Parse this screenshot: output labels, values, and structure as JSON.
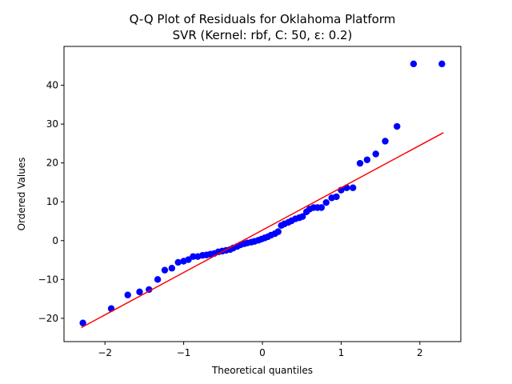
{
  "chart_data": {
    "type": "scatter",
    "title": "Q-Q Plot of Residuals for Oklahoma Platform",
    "subtitle": "SVR (Kernel: rbf, C: 50, ε: 0.2)",
    "xlabel": "Theoretical quantiles",
    "ylabel": "Ordered Values",
    "xlim": [
      -2.52,
      2.52
    ],
    "ylim": [
      -26,
      50
    ],
    "xticks": [
      -2,
      -1,
      0,
      1,
      2
    ],
    "xtick_labels": [
      "−2",
      "−1",
      "0",
      "1",
      "2"
    ],
    "yticks": [
      -20,
      -10,
      0,
      10,
      20,
      30,
      40
    ],
    "ytick_labels": [
      "−20",
      "−10",
      "0",
      "10",
      "20",
      "30",
      "40"
    ],
    "grid": false,
    "colors": {
      "points": "#0000ff",
      "fit_line": "#ff0000"
    },
    "series": [
      {
        "kind": "points",
        "x": [
          -2.28,
          -1.92,
          -1.71,
          -1.56,
          -1.44,
          -1.33,
          -1.24,
          -1.15,
          -1.07,
          -1.0,
          -0.94,
          -0.88,
          -0.82,
          -0.76,
          -0.71,
          -0.66,
          -0.61,
          -0.56,
          -0.51,
          -0.46,
          -0.41,
          -0.37,
          -0.32,
          -0.28,
          -0.23,
          -0.19,
          -0.14,
          -0.1,
          -0.05,
          -0.01,
          0.03,
          0.07,
          0.11,
          0.16,
          0.2,
          0.24,
          0.28,
          0.33,
          0.37,
          0.42,
          0.47,
          0.51,
          0.56,
          0.6,
          0.65,
          0.7,
          0.75,
          0.81,
          0.88,
          0.94,
          1.0,
          1.07,
          1.15,
          1.24,
          1.33,
          1.44,
          1.56,
          1.71,
          1.92,
          2.28
        ],
        "y": [
          -21.2,
          -17.5,
          -14.0,
          -13.2,
          -12.6,
          -10.0,
          -7.6,
          -7.1,
          -5.6,
          -5.3,
          -4.9,
          -4.1,
          -4.1,
          -3.8,
          -3.7,
          -3.5,
          -3.3,
          -2.9,
          -2.7,
          -2.5,
          -2.3,
          -1.9,
          -1.5,
          -1.1,
          -0.8,
          -0.6,
          -0.4,
          -0.2,
          0.1,
          0.4,
          0.7,
          1.0,
          1.4,
          1.8,
          2.3,
          3.9,
          4.3,
          4.7,
          5.1,
          5.6,
          5.9,
          6.2,
          7.4,
          8.1,
          8.5,
          8.5,
          8.5,
          9.8,
          11.0,
          11.3,
          13.0,
          13.6,
          13.6,
          19.9,
          20.8,
          22.3,
          25.6,
          29.4,
          45.5,
          45.5
        ]
      },
      {
        "kind": "fit_line",
        "x": [
          -2.3,
          2.3
        ],
        "y": [
          -22.4,
          27.8
        ]
      }
    ]
  }
}
